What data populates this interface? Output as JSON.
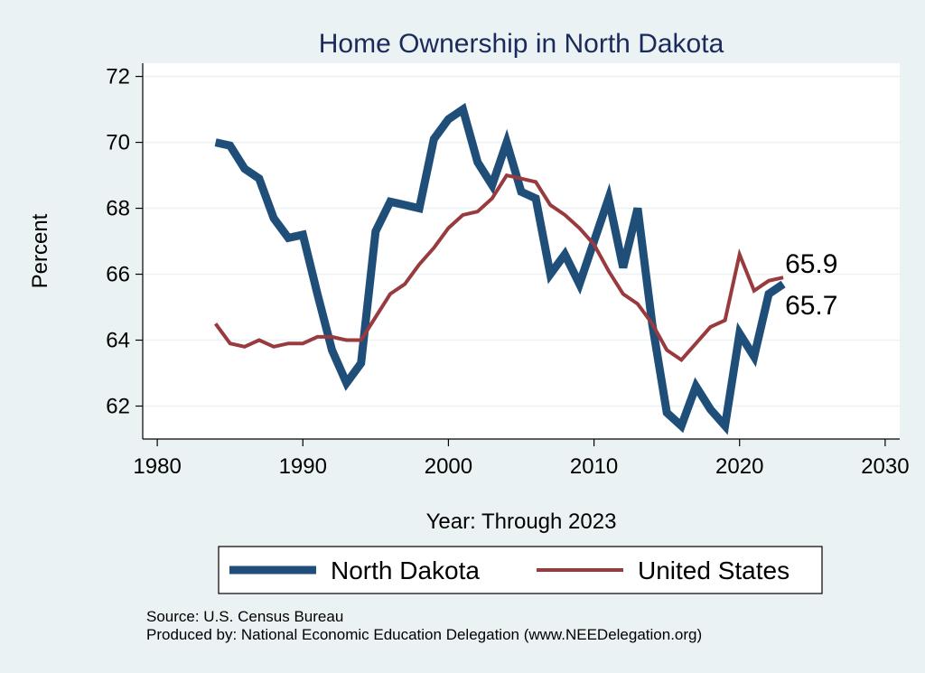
{
  "chart_data": {
    "type": "line",
    "title": "Home Ownership in North Dakota",
    "xlabel": "Year: Through 2023",
    "ylabel": "Percent",
    "xlim": [
      1979,
      2031
    ],
    "ylim": [
      61,
      72.4
    ],
    "xticks": [
      1980,
      1990,
      2000,
      2010,
      2020,
      2030
    ],
    "yticks": [
      62,
      64,
      66,
      68,
      70,
      72
    ],
    "grid": true,
    "legend_position": "bottom",
    "series": [
      {
        "name": "North Dakota",
        "color": "#1f4e79",
        "x": [
          1984,
          1985,
          1986,
          1987,
          1988,
          1989,
          1990,
          1991,
          1992,
          1993,
          1994,
          1995,
          1996,
          1997,
          1998,
          1999,
          2000,
          2001,
          2002,
          2003,
          2004,
          2005,
          2006,
          2007,
          2008,
          2009,
          2010,
          2011,
          2012,
          2013,
          2014,
          2015,
          2016,
          2017,
          2018,
          2019,
          2020,
          2021,
          2022,
          2023
        ],
        "values": [
          70.0,
          69.9,
          69.2,
          68.9,
          67.7,
          67.1,
          67.2,
          65.4,
          63.7,
          62.7,
          63.3,
          67.3,
          68.2,
          68.1,
          68.0,
          70.1,
          70.7,
          71.0,
          69.4,
          68.7,
          70.0,
          68.5,
          68.3,
          66.0,
          66.6,
          65.7,
          67.0,
          68.3,
          66.2,
          68.0,
          64.5,
          61.8,
          61.4,
          62.6,
          61.9,
          61.4,
          64.2,
          63.5,
          65.4,
          65.7
        ],
        "end_label": "65.7"
      },
      {
        "name": "United States",
        "color": "#983a3e",
        "x": [
          1984,
          1985,
          1986,
          1987,
          1988,
          1989,
          1990,
          1991,
          1992,
          1993,
          1994,
          1995,
          1996,
          1997,
          1998,
          1999,
          2000,
          2001,
          2002,
          2003,
          2004,
          2005,
          2006,
          2007,
          2008,
          2009,
          2010,
          2011,
          2012,
          2013,
          2014,
          2015,
          2016,
          2017,
          2018,
          2019,
          2020,
          2021,
          2022,
          2023
        ],
        "values": [
          64.5,
          63.9,
          63.8,
          64.0,
          63.8,
          63.9,
          63.9,
          64.1,
          64.1,
          64.0,
          64.0,
          64.7,
          65.4,
          65.7,
          66.3,
          66.8,
          67.4,
          67.8,
          67.9,
          68.3,
          69.0,
          68.9,
          68.8,
          68.1,
          67.8,
          67.4,
          66.9,
          66.1,
          65.4,
          65.1,
          64.5,
          63.7,
          63.4,
          63.9,
          64.4,
          64.6,
          66.6,
          65.5,
          65.8,
          65.9
        ],
        "end_label": "65.9"
      }
    ]
  },
  "notes": {
    "source": "Source: U.S. Census Bureau",
    "produced_by": "Produced by: National Economic Education Delegation (www.NEEDelegation.org)"
  }
}
